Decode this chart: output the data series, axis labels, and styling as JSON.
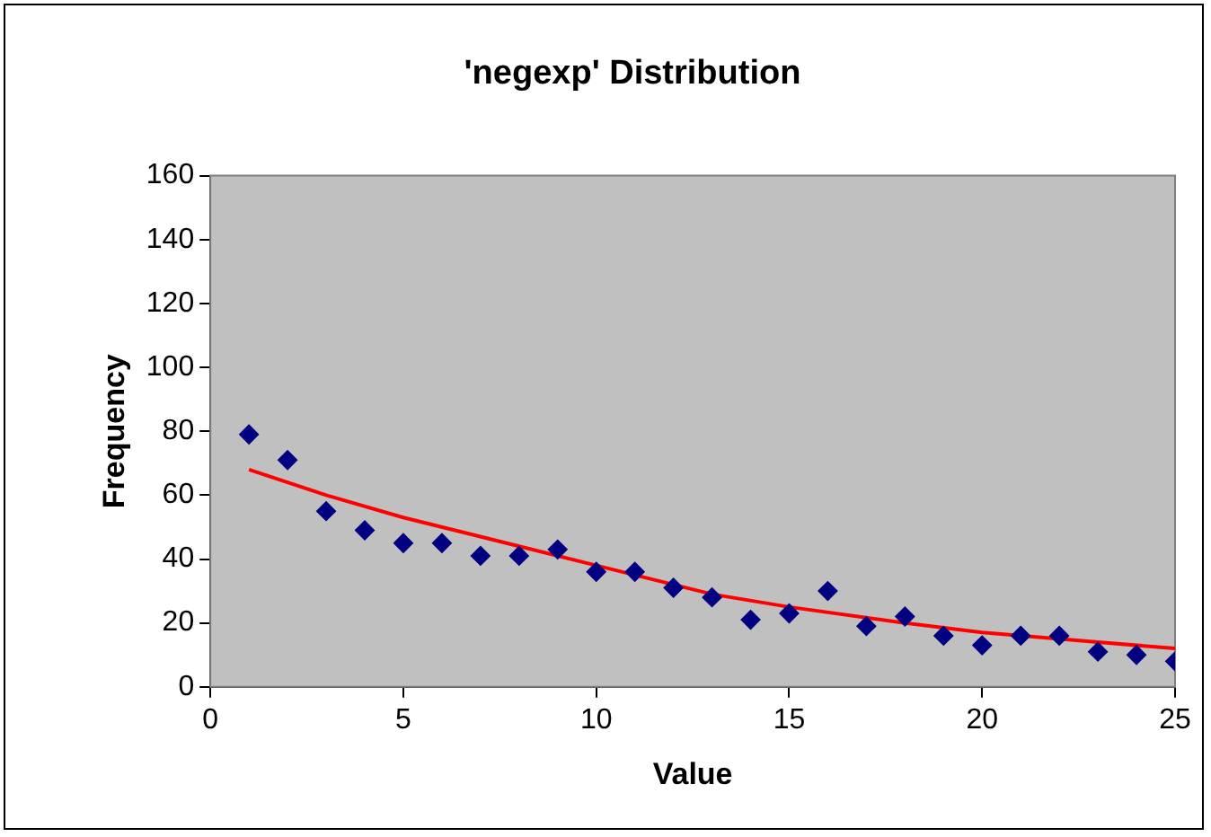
{
  "chart_data": {
    "type": "scatter",
    "title": "'negexp' Distribution",
    "xlabel": "Value",
    "ylabel": "Frequency",
    "xlim": [
      0,
      25
    ],
    "xticks": [
      0,
      5,
      10,
      15,
      20,
      25
    ],
    "ylim": [
      0,
      160
    ],
    "yticks": [
      0,
      20,
      40,
      60,
      80,
      100,
      120,
      140,
      160
    ],
    "legend": false,
    "marker": "diamond",
    "series": [
      {
        "color": "#000080",
        "x": [
          1,
          2,
          3,
          4,
          5,
          6,
          7,
          8,
          9,
          10,
          11,
          12,
          13,
          14,
          15,
          16,
          17,
          18,
          19,
          20,
          21,
          22,
          23,
          24,
          25
        ],
        "values": [
          79,
          71,
          55,
          49,
          45,
          45,
          41,
          41,
          43,
          36,
          36,
          31,
          28,
          21,
          23,
          30,
          19,
          22,
          16,
          13,
          16,
          16,
          11,
          10,
          8
        ]
      },
      {
        "type": "line",
        "color": "#ff0000",
        "marker": "none",
        "x": [
          1,
          3,
          5,
          8,
          10,
          13,
          15,
          18,
          20,
          23,
          25
        ],
        "values": [
          68,
          60,
          53,
          44,
          38,
          29,
          25,
          20,
          17,
          14,
          12
        ]
      }
    ]
  }
}
